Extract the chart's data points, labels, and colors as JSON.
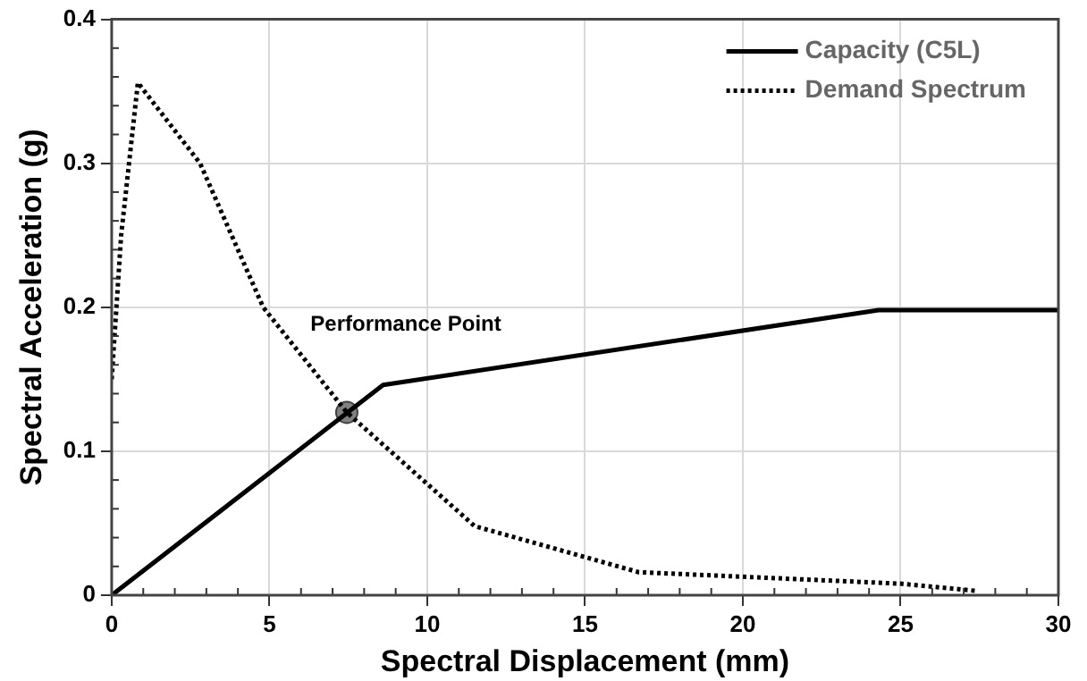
{
  "chart_data": {
    "type": "line",
    "xlabel": "Spectral Displacement (mm)",
    "ylabel": "Spectral Acceleration (g)",
    "xlim": [
      0,
      30
    ],
    "xticks": [
      0,
      5,
      10,
      15,
      20,
      25,
      30
    ],
    "ylim": [
      0,
      0.4
    ],
    "yticks": [
      0,
      0.1,
      0.2,
      0.3,
      0.4
    ],
    "grid": true,
    "legend": "top right",
    "marker": "none",
    "series": [
      {
        "name": "Capacity (C5L)",
        "color": "#000000",
        "line_style": "solid",
        "x": [
          0,
          8.6,
          24.3,
          30
        ],
        "values": [
          0,
          0.146,
          0.198,
          0.198
        ]
      },
      {
        "name": "Demand Spectrum",
        "color": "#000000",
        "line_style": "dotted",
        "x": [
          0,
          0.3,
          0.83,
          2.8,
          4.8,
          7.45,
          11.5,
          16.7,
          25,
          27.4
        ],
        "values": [
          0.15,
          0.25,
          0.356,
          0.3,
          0.2,
          0.127,
          0.048,
          0.016,
          0.008,
          0.003
        ]
      },
      {
        "type": "scatter",
        "color": "#808080",
        "marker": "circle",
        "x": [
          7.45
        ],
        "values": [
          0.127
        ]
      }
    ],
    "annotations": [
      "Performance Point"
    ]
  }
}
